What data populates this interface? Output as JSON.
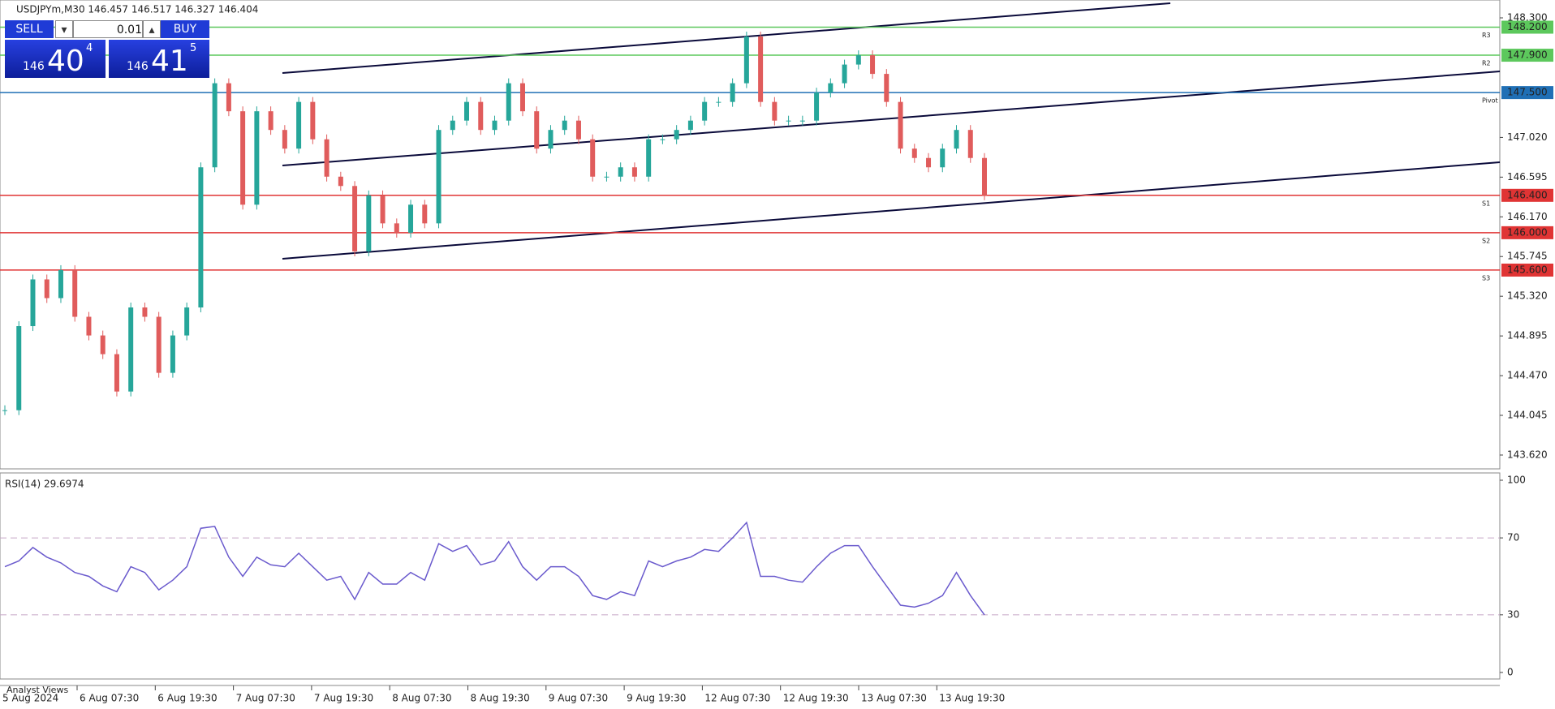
{
  "header": {
    "symbol_line": "USDJPYm,M30 146.457 146.517 146.327 146.404"
  },
  "trade_panel": {
    "sell": "SELL",
    "lot": "0.01",
    "buy": "BUY",
    "bid_big": "146",
    "bid_main": "40",
    "bid_sup": "4",
    "ask_big": "146",
    "ask_main": "41",
    "ask_sup": "5"
  },
  "chart_data": [
    {
      "type": "candlestick",
      "title": "USDJPYm,M30",
      "x_labels": [
        "5 Aug 2024",
        "6 Aug 07:30",
        "6 Aug 19:30",
        "7 Aug 07:30",
        "7 Aug 19:30",
        "8 Aug 07:30",
        "8 Aug 19:30",
        "9 Aug 07:30",
        "9 Aug 19:30",
        "12 Aug 07:30",
        "12 Aug 19:30",
        "13 Aug 07:30",
        "13 Aug 19:30"
      ],
      "series": [
        {
          "name": "USDJPYm",
          "up_color": "#26a69a",
          "down_color": "#e05c5c",
          "values": [
            144.1,
            145.0,
            145.5,
            145.3,
            145.6,
            145.1,
            144.9,
            144.7,
            144.3,
            145.2,
            145.1,
            144.5,
            144.9,
            145.2,
            146.7,
            147.6,
            147.3,
            146.3,
            147.3,
            147.1,
            146.9,
            147.4,
            147.0,
            146.6,
            146.5,
            145.8,
            146.4,
            146.1,
            146.0,
            146.3,
            146.1,
            147.1,
            147.2,
            147.4,
            147.1,
            147.2,
            147.6,
            147.3,
            146.9,
            147.1,
            147.2,
            147.0,
            146.6,
            146.6,
            146.7,
            146.6,
            147.0,
            147.0,
            147.1,
            147.2,
            147.4,
            147.4,
            147.6,
            148.1,
            147.4,
            147.2,
            147.2,
            147.2,
            147.5,
            147.6,
            147.8,
            147.9,
            147.7,
            147.4,
            146.9,
            146.8,
            146.7,
            146.9,
            147.1,
            146.8,
            146.4
          ]
        }
      ],
      "ylim": [
        143.472,
        148.491
      ],
      "yticks": [
        {
          "value": 148.3,
          "label": "148.300"
        },
        {
          "value": 147.02,
          "label": "147.020"
        },
        {
          "value": 146.595,
          "label": "146.595"
        },
        {
          "value": 146.17,
          "label": "146.170"
        },
        {
          "value": 145.745,
          "label": "145.745"
        },
        {
          "value": 145.32,
          "label": "145.320"
        },
        {
          "value": 144.895,
          "label": "144.895"
        },
        {
          "value": 144.47,
          "label": "144.470"
        },
        {
          "value": 144.045,
          "label": "144.045"
        },
        {
          "value": 143.62,
          "label": "143.620"
        }
      ],
      "levels": [
        {
          "name": "R3",
          "value": 148.2,
          "label": "148.200",
          "color": "#5cc85c"
        },
        {
          "name": "R2",
          "value": 147.9,
          "label": "147.900",
          "color": "#5cc85c"
        },
        {
          "name": "Pivot",
          "value": 147.5,
          "label": "147.500",
          "color": "#1f6fb5"
        },
        {
          "name": "S1",
          "value": 146.4,
          "label": "146.400",
          "color": "#e03434"
        },
        {
          "name": "S2",
          "value": 146.0,
          "label": "146.000",
          "color": "#e03434"
        },
        {
          "name": "S3",
          "value": 145.6,
          "label": "145.600",
          "color": "#e03434"
        }
      ]
    },
    {
      "type": "line",
      "title": "RSI(14) 29.6974",
      "series": [
        {
          "name": "RSI(14)",
          "color": "#6a5acd",
          "values": [
            55,
            58,
            65,
            60,
            57,
            52,
            50,
            45,
            42,
            55,
            52,
            43,
            48,
            55,
            75,
            76,
            60,
            50,
            60,
            56,
            55,
            62,
            55,
            48,
            50,
            38,
            52,
            46,
            46,
            52,
            48,
            67,
            63,
            66,
            56,
            58,
            68,
            55,
            48,
            55,
            55,
            50,
            40,
            38,
            42,
            40,
            58,
            55,
            58,
            60,
            64,
            63,
            70,
            78,
            50,
            50,
            48,
            47,
            55,
            62,
            66,
            66,
            55,
            45,
            35,
            34,
            36,
            40,
            52,
            40,
            30
          ]
        }
      ],
      "ylim": [
        -3.4,
        103.8
      ],
      "yticks": [
        100,
        70,
        30,
        0
      ]
    }
  ],
  "footer": {
    "tab": "Analyst Views"
  }
}
